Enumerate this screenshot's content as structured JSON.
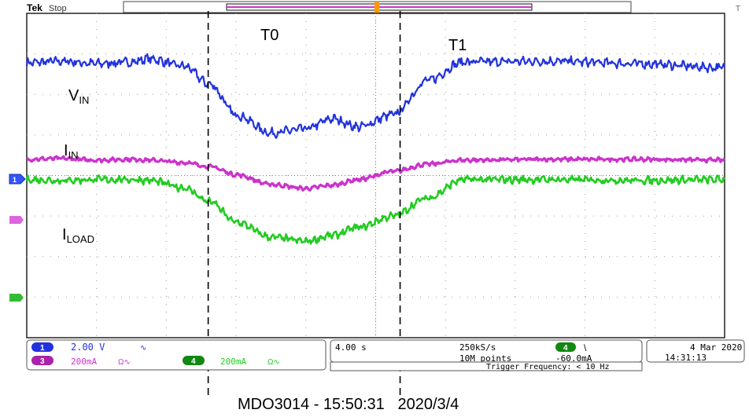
{
  "header": {
    "brand": "Tek",
    "state": "Stop"
  },
  "annotations": {
    "t0": "T0",
    "t1": "T1",
    "vin_main": "V",
    "vin_sub": "IN",
    "iin_main": "I",
    "iin_sub": "IN",
    "iload_main": "I",
    "iload_sub": "LOAD"
  },
  "channels": {
    "ch1": {
      "badge": "1",
      "scale": "2.00 V",
      "coupling": "∿",
      "color": "#2233dd"
    },
    "ch3": {
      "badge": "3",
      "scale": "200mA",
      "coupling": "Ω∿",
      "color": "#cc33cc"
    },
    "ch4": {
      "badge": "4",
      "scale": "200mA",
      "coupling": "Ω∿",
      "color": "#22cc22"
    }
  },
  "timebase": {
    "scale": "4.00 s",
    "sample_rate": "250kS/s",
    "record_length": "10M points",
    "trigger_source": "4",
    "trigger_slope": "\\",
    "trigger_level": "-60.0mA",
    "trigger_frequency": "Trigger Frequency: < 10 Hz"
  },
  "datetime": {
    "date": "4 Mar 2020",
    "time": "14:31:13"
  },
  "caption": "MDO3014 - 15:50:31   2020/3/4",
  "chart_data": {
    "type": "line",
    "xlabel": "",
    "ylabel": "",
    "grid": true,
    "x": [
      0,
      2,
      4,
      6,
      7,
      9,
      10.5,
      12,
      14,
      16,
      17.5,
      19,
      21,
      23,
      25,
      30,
      35,
      40
    ],
    "xlim": [
      0,
      40
    ],
    "ylim": [
      -4,
      4
    ],
    "series": [
      {
        "name": "V",
        "channel": "ch1",
        "color": "#2233dd",
        "values": [
          2.78,
          2.82,
          2.76,
          2.8,
          2.88,
          2.7,
          2.25,
          1.5,
          1.05,
          1.15,
          1.4,
          1.2,
          1.5,
          2.35,
          2.8,
          2.82,
          2.76,
          2.66
        ]
      },
      {
        "name": "I",
        "channel": "ch3",
        "color": "#cc33cc",
        "values": [
          0.4,
          0.42,
          0.38,
          0.4,
          0.38,
          0.32,
          0.22,
          0.02,
          -0.22,
          -0.32,
          -0.24,
          -0.1,
          0.1,
          0.28,
          0.38,
          0.4,
          0.4,
          0.38
        ]
      },
      {
        "name": "I",
        "channel": "ch4",
        "color": "#22cc22",
        "values": [
          -0.1,
          -0.12,
          -0.1,
          -0.1,
          -0.12,
          -0.3,
          -0.65,
          -1.15,
          -1.52,
          -1.62,
          -1.48,
          -1.28,
          -1.0,
          -0.55,
          -0.1,
          -0.1,
          -0.12,
          -0.1
        ]
      }
    ],
    "markers": [
      {
        "label": "T0",
        "x": 10.4
      },
      {
        "label": "T1",
        "x": 21.4
      }
    ]
  }
}
